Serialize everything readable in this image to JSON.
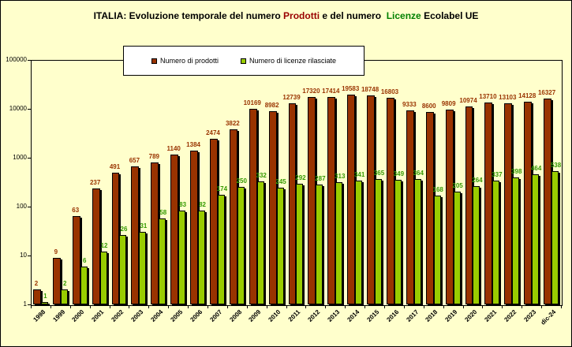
{
  "title": {
    "prefix": "ITALIA: Evoluzione temporale del numero ",
    "highlight_products": "Prodotti",
    "middle": " e del numero  ",
    "highlight_licenses": "Licenze",
    "suffix": " Ecolabel UE"
  },
  "colors": {
    "background": "#FFFFCC",
    "title_products": "#990000",
    "title_licenses": "#008000",
    "products_bar": "#993300",
    "products_label": "#993300",
    "licenses_bar": "#99CC00",
    "licenses_label": "#339900",
    "axis": "#000000",
    "shadow": "#000000",
    "legend_bg": "#FFFFFF"
  },
  "chart_data": {
    "type": "bar",
    "scale": "log",
    "ylim": [
      1,
      100000
    ],
    "yticks": [
      1,
      10,
      100,
      1000,
      10000,
      100000
    ],
    "grid": false,
    "legend_position": "top",
    "title": "ITALIA: Evoluzione temporale del numero Prodotti e del numero Licenze Ecolabel UE",
    "xlabel": "",
    "ylabel": "",
    "categories": [
      "1998",
      "1999",
      "2000",
      "2001",
      "2002",
      "2003",
      "2004",
      "2005",
      "2006",
      "2007",
      "2008",
      "2009",
      "2010",
      "2011",
      "2012",
      "2013",
      "2014",
      "2015",
      "2016",
      "2017",
      "2018",
      "2019",
      "2020",
      "2021",
      "2022",
      "2023",
      "dic-24"
    ],
    "series": [
      {
        "name": "Numero di prodotti",
        "color": "#993300",
        "label_color": "#993300",
        "values": [
          2,
          9,
          63,
          237,
          491,
          657,
          789,
          1140,
          1384,
          2474,
          3822,
          10169,
          8982,
          12739,
          17320,
          17414,
          19583,
          18748,
          16803,
          9333,
          8600,
          9809,
          10974,
          13710,
          13103,
          14128,
          16327
        ]
      },
      {
        "name": "Numero di licenze rilasciate",
        "color": "#99CC00",
        "label_color": "#339900",
        "values": [
          1,
          2,
          6,
          12,
          26,
          31,
          58,
          83,
          82,
          174,
          250,
          332,
          245,
          292,
          287,
          313,
          341,
          365,
          349,
          364,
          168,
          205,
          264,
          337,
          398,
          464,
          538
        ]
      }
    ]
  }
}
